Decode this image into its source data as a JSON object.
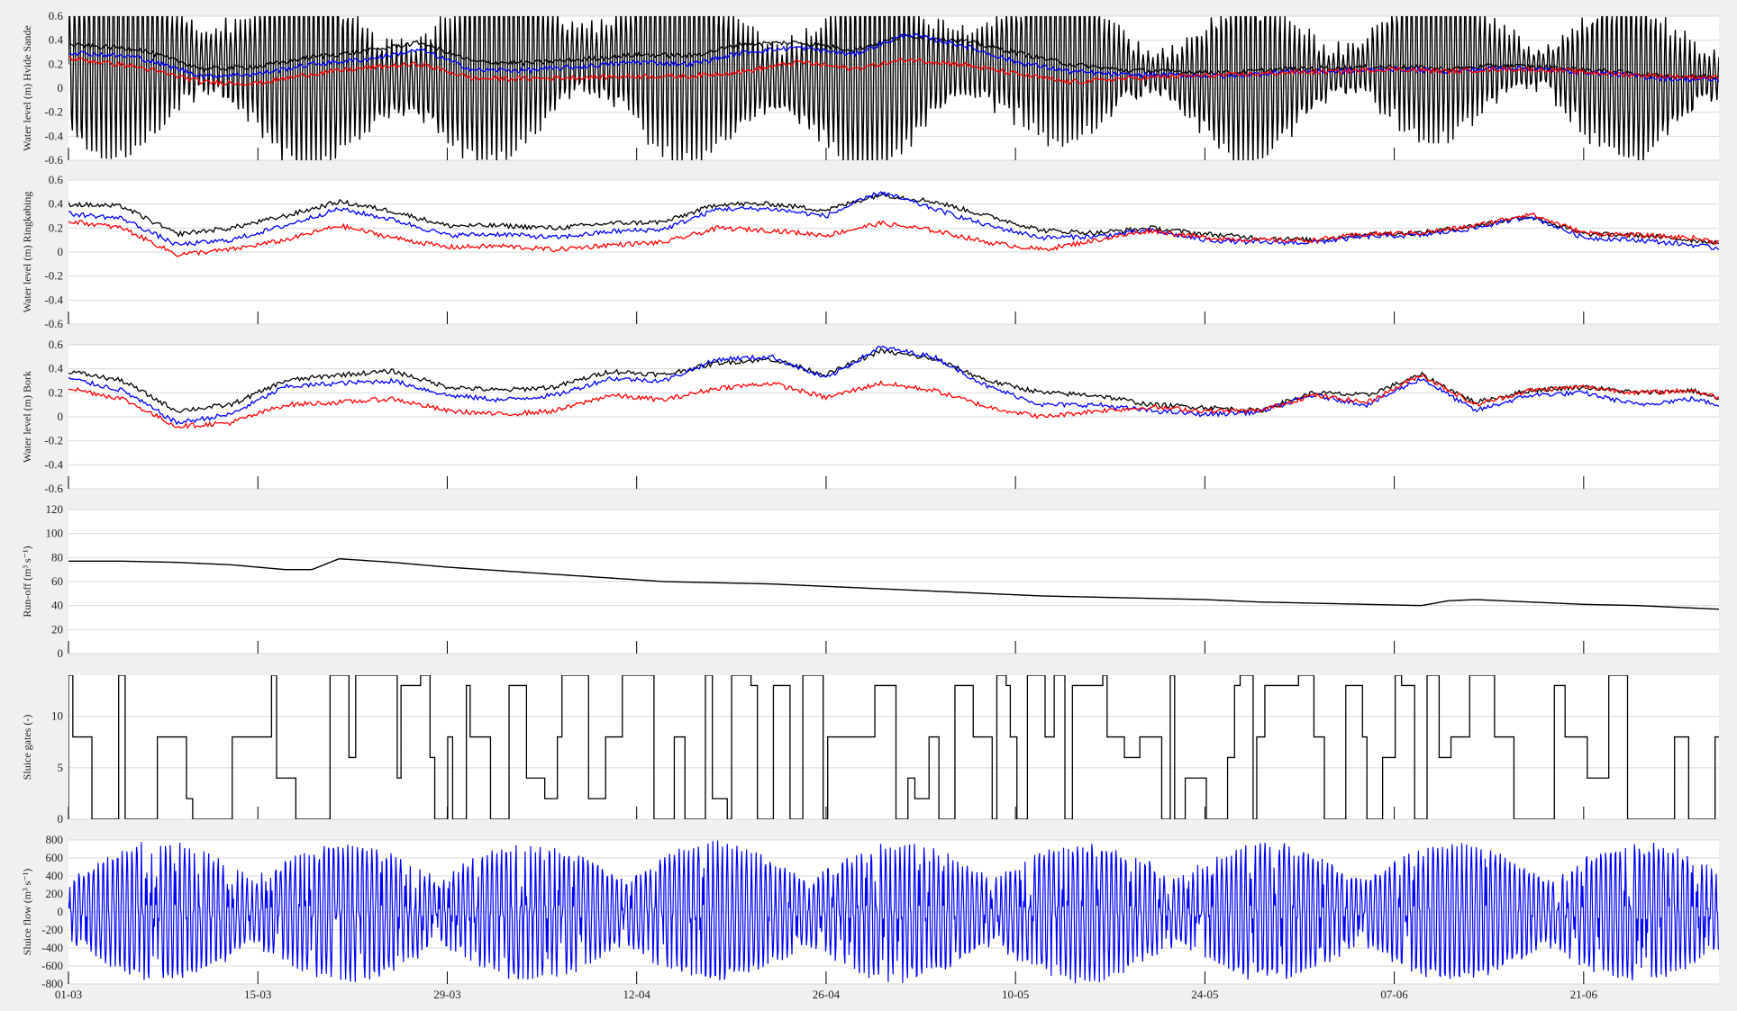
{
  "figure": {
    "background": "#f0f0f0",
    "panel_background": "#ffffff",
    "grid_color": "#d9d9d9",
    "colors": {
      "black": "#000000",
      "blue": "#0000ff",
      "red": "#ff0000"
    }
  },
  "chart_data": [
    {
      "type": "line",
      "ylabel": "Water level (m) Hvide Sande",
      "ylim": [
        -0.6,
        0.6
      ],
      "yticks": [
        "0.6",
        "0.4",
        "0.2",
        "0",
        "-0.2",
        "-0.4",
        "-0.6"
      ],
      "xlim": [
        0,
        122
      ],
      "xtick_labels": [],
      "grid": true,
      "series": [
        {
          "style": "black-tide",
          "color": "#000000",
          "description_pts": [
            [
              0,
              0.3
            ],
            [
              122,
              0.1
            ]
          ]
        },
        {
          "style": "smooth",
          "color": "#000000",
          "x": [
            0,
            5,
            10,
            14,
            18,
            22,
            26,
            30,
            34,
            38,
            42,
            46,
            50,
            54,
            58,
            62,
            66,
            70,
            74,
            78,
            82,
            86,
            90,
            94,
            98,
            102,
            106,
            110,
            114,
            118,
            122
          ],
          "y": [
            0.36,
            0.33,
            0.16,
            0.18,
            0.26,
            0.31,
            0.38,
            0.22,
            0.21,
            0.24,
            0.28,
            0.27,
            0.37,
            0.38,
            0.32,
            0.44,
            0.4,
            0.3,
            0.2,
            0.15,
            0.14,
            0.13,
            0.16,
            0.17,
            0.18,
            0.16,
            0.19,
            0.17,
            0.14,
            0.1,
            0.1
          ]
        },
        {
          "style": "smooth",
          "color": "#0000ff",
          "x": [
            0,
            5,
            10,
            14,
            18,
            22,
            26,
            30,
            34,
            38,
            42,
            46,
            50,
            54,
            58,
            62,
            66,
            70,
            74,
            78,
            82,
            86,
            90,
            94,
            98,
            102,
            106,
            110,
            114,
            118,
            122
          ],
          "y": [
            0.3,
            0.26,
            0.1,
            0.12,
            0.2,
            0.24,
            0.32,
            0.15,
            0.15,
            0.18,
            0.22,
            0.2,
            0.3,
            0.34,
            0.28,
            0.45,
            0.36,
            0.22,
            0.14,
            0.11,
            0.11,
            0.1,
            0.14,
            0.14,
            0.16,
            0.14,
            0.17,
            0.15,
            0.12,
            0.08,
            0.07
          ]
        },
        {
          "style": "smooth",
          "color": "#ff0000",
          "x": [
            0,
            5,
            10,
            14,
            18,
            22,
            26,
            30,
            34,
            38,
            42,
            46,
            50,
            54,
            58,
            62,
            66,
            70,
            74,
            78,
            82,
            86,
            90,
            94,
            98,
            102,
            106,
            110,
            114,
            118,
            122
          ],
          "y": [
            0.25,
            0.18,
            0.05,
            0.04,
            0.12,
            0.17,
            0.2,
            0.08,
            0.08,
            0.09,
            0.1,
            0.1,
            0.14,
            0.22,
            0.16,
            0.24,
            0.2,
            0.12,
            0.05,
            0.08,
            0.1,
            0.11,
            0.13,
            0.14,
            0.16,
            0.14,
            0.16,
            0.15,
            0.12,
            0.1,
            0.09
          ]
        }
      ]
    },
    {
      "type": "line",
      "ylabel": "Water level (m) Ringkøbing",
      "ylim": [
        -0.6,
        0.6
      ],
      "yticks": [
        "0.6",
        "0.4",
        "0.2",
        "0",
        "-0.2",
        "-0.4",
        "-0.6"
      ],
      "xlim": [
        0,
        122
      ],
      "xtick_labels": [],
      "grid": true,
      "series": [
        {
          "color": "#000000",
          "x": [
            0,
            4,
            8,
            12,
            16,
            20,
            24,
            28,
            32,
            36,
            40,
            44,
            48,
            52,
            56,
            60,
            64,
            68,
            72,
            76,
            80,
            84,
            88,
            92,
            96,
            100,
            104,
            108,
            112,
            116,
            120,
            122
          ],
          "y": [
            0.4,
            0.38,
            0.15,
            0.2,
            0.3,
            0.42,
            0.34,
            0.22,
            0.22,
            0.2,
            0.24,
            0.25,
            0.4,
            0.4,
            0.35,
            0.48,
            0.42,
            0.3,
            0.18,
            0.16,
            0.2,
            0.15,
            0.12,
            0.1,
            0.15,
            0.16,
            0.22,
            0.3,
            0.15,
            0.14,
            0.1,
            0.08
          ]
        },
        {
          "color": "#0000ff",
          "x": [
            0,
            4,
            8,
            12,
            16,
            20,
            24,
            28,
            32,
            36,
            40,
            44,
            48,
            52,
            56,
            60,
            64,
            68,
            72,
            76,
            80,
            84,
            88,
            92,
            96,
            100,
            104,
            108,
            112,
            116,
            120,
            122
          ],
          "y": [
            0.32,
            0.28,
            0.06,
            0.1,
            0.22,
            0.36,
            0.27,
            0.14,
            0.15,
            0.12,
            0.17,
            0.19,
            0.36,
            0.36,
            0.3,
            0.5,
            0.36,
            0.22,
            0.12,
            0.13,
            0.18,
            0.1,
            0.08,
            0.08,
            0.13,
            0.14,
            0.2,
            0.3,
            0.12,
            0.1,
            0.06,
            0.03
          ]
        },
        {
          "color": "#ff0000",
          "x": [
            0,
            4,
            8,
            12,
            16,
            20,
            24,
            28,
            32,
            36,
            40,
            44,
            48,
            52,
            56,
            60,
            64,
            68,
            72,
            76,
            80,
            84,
            88,
            92,
            96,
            100,
            104,
            108,
            112,
            116,
            120,
            122
          ],
          "y": [
            0.26,
            0.2,
            -0.02,
            0.02,
            0.1,
            0.22,
            0.12,
            0.04,
            0.05,
            0.02,
            0.06,
            0.08,
            0.2,
            0.18,
            0.14,
            0.24,
            0.18,
            0.08,
            0.02,
            0.1,
            0.18,
            0.12,
            0.1,
            0.1,
            0.15,
            0.16,
            0.22,
            0.32,
            0.16,
            0.14,
            0.12,
            0.08
          ]
        }
      ]
    },
    {
      "type": "line",
      "ylabel": "Water level (m) Bork",
      "ylim": [
        -0.6,
        0.6
      ],
      "yticks": [
        "0.6",
        "0.4",
        "0.2",
        "0",
        "-0.2",
        "-0.4",
        "-0.6"
      ],
      "xlim": [
        0,
        122
      ],
      "xtick_labels": [],
      "grid": true,
      "series": [
        {
          "color": "#000000",
          "x": [
            0,
            4,
            8,
            12,
            16,
            20,
            24,
            28,
            32,
            36,
            40,
            44,
            48,
            52,
            56,
            60,
            64,
            68,
            72,
            76,
            80,
            84,
            88,
            92,
            96,
            100,
            104,
            108,
            112,
            116,
            120,
            122
          ],
          "y": [
            0.38,
            0.3,
            0.05,
            0.1,
            0.3,
            0.35,
            0.38,
            0.25,
            0.22,
            0.25,
            0.38,
            0.35,
            0.45,
            0.48,
            0.35,
            0.55,
            0.48,
            0.3,
            0.2,
            0.18,
            0.1,
            0.08,
            0.05,
            0.2,
            0.18,
            0.35,
            0.12,
            0.22,
            0.25,
            0.2,
            0.22,
            0.15
          ]
        },
        {
          "color": "#0000ff",
          "x": [
            0,
            4,
            8,
            12,
            16,
            20,
            24,
            28,
            32,
            36,
            40,
            44,
            48,
            52,
            56,
            60,
            64,
            68,
            72,
            76,
            80,
            84,
            88,
            92,
            96,
            100,
            104,
            108,
            112,
            116,
            120,
            122
          ],
          "y": [
            0.32,
            0.22,
            -0.05,
            0.02,
            0.25,
            0.28,
            0.3,
            0.18,
            0.14,
            0.18,
            0.32,
            0.3,
            0.48,
            0.5,
            0.32,
            0.58,
            0.5,
            0.25,
            0.1,
            0.1,
            0.05,
            0.02,
            0.04,
            0.18,
            0.1,
            0.32,
            0.05,
            0.18,
            0.2,
            0.1,
            0.15,
            0.1
          ]
        },
        {
          "color": "#ff0000",
          "x": [
            0,
            4,
            8,
            12,
            16,
            20,
            24,
            28,
            32,
            36,
            40,
            44,
            48,
            52,
            56,
            60,
            64,
            68,
            72,
            76,
            80,
            84,
            88,
            92,
            96,
            100,
            104,
            108,
            112,
            116,
            120,
            122
          ],
          "y": [
            0.24,
            0.15,
            -0.08,
            -0.05,
            0.1,
            0.12,
            0.15,
            0.05,
            0.02,
            0.05,
            0.18,
            0.14,
            0.24,
            0.28,
            0.16,
            0.28,
            0.22,
            0.08,
            0.0,
            0.05,
            0.08,
            0.05,
            0.05,
            0.18,
            0.12,
            0.35,
            0.1,
            0.22,
            0.25,
            0.2,
            0.22,
            0.16
          ]
        }
      ]
    },
    {
      "type": "line",
      "ylabel": "Run-off (m³ s⁻¹)",
      "ylim": [
        0,
        120
      ],
      "yticks": [
        "120",
        "100",
        "80",
        "60",
        "40",
        "20",
        "0"
      ],
      "xlim": [
        0,
        122
      ],
      "xtick_labels": [],
      "grid": true,
      "series": [
        {
          "color": "#000000",
          "x": [
            0,
            4,
            8,
            12,
            14,
            16,
            18,
            20,
            24,
            28,
            32,
            36,
            40,
            44,
            48,
            52,
            56,
            60,
            64,
            68,
            72,
            76,
            80,
            84,
            88,
            92,
            96,
            100,
            102,
            104,
            106,
            108,
            112,
            116,
            120,
            122
          ],
          "y": [
            77,
            77,
            76,
            74,
            72,
            70,
            70,
            79,
            76,
            72,
            69,
            66,
            63,
            60,
            59,
            58,
            56,
            54,
            52,
            50,
            48,
            47,
            46,
            45,
            43,
            42,
            41,
            40,
            44,
            45,
            44,
            43,
            41,
            40,
            38,
            37
          ]
        }
      ]
    },
    {
      "type": "line",
      "ylabel": "Sluice gates (-)",
      "ylim": [
        0,
        14
      ],
      "yticks": [
        "10",
        "5",
        "0"
      ],
      "ytick_values": [
        10,
        5,
        0
      ],
      "xlim": [
        0,
        122
      ],
      "xtick_labels": [],
      "grid": true,
      "series": [
        {
          "style": "step-gates",
          "color": "#000000",
          "x": [
            0,
            122
          ],
          "y": [
            0,
            0
          ]
        }
      ]
    },
    {
      "type": "line",
      "ylabel": "Sluice flow (m³ s⁻¹)",
      "ylim": [
        -800,
        800
      ],
      "yticks": [
        "800",
        "600",
        "400",
        "200",
        "0",
        "-200",
        "-400",
        "-600",
        "-800"
      ],
      "xlim": [
        0,
        122
      ],
      "xtick_labels": [
        "01-03",
        "15-03",
        "29-03",
        "12-04",
        "26-04",
        "10-05",
        "24-05",
        "07-06",
        "21-06"
      ],
      "xtick_values": [
        0,
        14,
        28,
        42,
        56,
        70,
        84,
        98,
        112
      ],
      "grid": true,
      "series": [
        {
          "style": "oscillating",
          "color": "#0000ff",
          "x": [
            0,
            122
          ],
          "y": [
            0,
            0
          ]
        }
      ]
    }
  ]
}
